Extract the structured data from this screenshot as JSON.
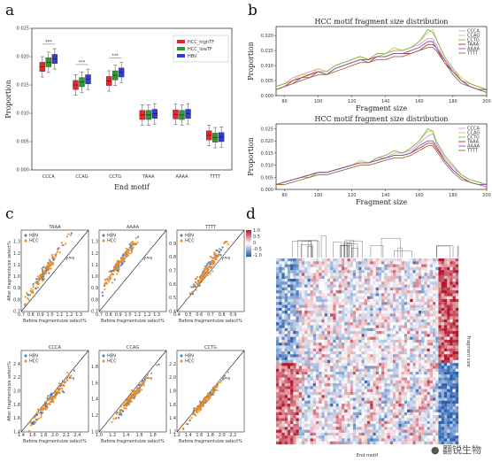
{
  "panels": [
    "a",
    "b",
    "c",
    "d"
  ],
  "watermark": "翻锐生物",
  "chart_data": [
    {
      "id": "a",
      "type": "box",
      "xlabel": "End motif",
      "ylabel": "Proportion",
      "ylim": [
        0,
        0.025
      ],
      "yticks": [
        "0.000",
        "0.005",
        "0.010",
        "0.015",
        "0.020",
        "0.025"
      ],
      "categories": [
        "CCCA",
        "CCAG",
        "CCTG",
        "TAAA",
        "AAAA",
        "TTTT"
      ],
      "series": [
        {
          "name": "HCC_highTF",
          "color": "#e8262b",
          "medians": [
            0.0182,
            0.015,
            0.0157,
            0.0097,
            0.0098,
            0.0061
          ]
        },
        {
          "name": "HCC_lowTF",
          "color": "#2e9a2f",
          "medians": [
            0.019,
            0.0155,
            0.0167,
            0.0097,
            0.0097,
            0.0057
          ]
        },
        {
          "name": "HBV",
          "color": "#2b3fd8",
          "medians": [
            0.0196,
            0.016,
            0.0172,
            0.0099,
            0.0099,
            0.0058
          ]
        }
      ],
      "annotations": [
        "***",
        "***",
        "***"
      ]
    },
    {
      "id": "b1",
      "type": "line",
      "title": "HCC motif fragment size distribution",
      "xlabel": "Fragment size",
      "ylabel": "Proportion",
      "xlim": [
        75,
        200
      ],
      "ylim": [
        0,
        0.023
      ],
      "xticks": [
        "80",
        "100",
        "120",
        "140",
        "160",
        "180",
        "200"
      ],
      "yticks": [
        "0.000",
        "0.005",
        "0.010",
        "0.015",
        "0.020"
      ],
      "legend": [
        "CCCA",
        "CCAG",
        "CCTG",
        "TAAA",
        "AAAA",
        "TTTT"
      ],
      "x": [
        75,
        80,
        85,
        90,
        95,
        100,
        105,
        110,
        115,
        120,
        125,
        130,
        135,
        140,
        145,
        150,
        155,
        160,
        165,
        168,
        170,
        175,
        180,
        185,
        190,
        195,
        200
      ],
      "series": [
        {
          "name": "CCCA",
          "color": "#d89ad8",
          "values": [
            0.003,
            0.004,
            0.006,
            0.007,
            0.008,
            0.009,
            0.008,
            0.01,
            0.011,
            0.012,
            0.013,
            0.012,
            0.013,
            0.014,
            0.016,
            0.015,
            0.016,
            0.017,
            0.019,
            0.019,
            0.017,
            0.012,
            0.008,
            0.005,
            0.004,
            0.003,
            0.002
          ]
        },
        {
          "name": "CCAG",
          "color": "#e0c060",
          "values": [
            0.003,
            0.004,
            0.005,
            0.007,
            0.007,
            0.009,
            0.008,
            0.01,
            0.011,
            0.012,
            0.013,
            0.012,
            0.014,
            0.014,
            0.016,
            0.015,
            0.016,
            0.018,
            0.021,
            0.022,
            0.019,
            0.013,
            0.009,
            0.006,
            0.004,
            0.003,
            0.002
          ]
        },
        {
          "name": "CCTG",
          "color": "#7bbf3f",
          "values": [
            0.003,
            0.004,
            0.005,
            0.006,
            0.007,
            0.008,
            0.008,
            0.01,
            0.011,
            0.012,
            0.013,
            0.012,
            0.014,
            0.014,
            0.015,
            0.015,
            0.016,
            0.018,
            0.022,
            0.021,
            0.019,
            0.013,
            0.009,
            0.005,
            0.004,
            0.003,
            0.002
          ]
        },
        {
          "name": "TAAA",
          "color": "#c03030",
          "values": [
            0.002,
            0.003,
            0.005,
            0.006,
            0.007,
            0.008,
            0.007,
            0.009,
            0.01,
            0.011,
            0.012,
            0.012,
            0.013,
            0.013,
            0.014,
            0.014,
            0.014,
            0.015,
            0.017,
            0.017,
            0.016,
            0.011,
            0.008,
            0.005,
            0.003,
            0.002,
            0.002
          ]
        },
        {
          "name": "AAAA",
          "color": "#8a52b8",
          "values": [
            0.002,
            0.003,
            0.004,
            0.006,
            0.006,
            0.008,
            0.007,
            0.009,
            0.01,
            0.011,
            0.012,
            0.011,
            0.013,
            0.013,
            0.014,
            0.014,
            0.015,
            0.016,
            0.018,
            0.018,
            0.016,
            0.012,
            0.008,
            0.005,
            0.003,
            0.002,
            0.002
          ]
        },
        {
          "name": "TTTT",
          "color": "#9a6a3a",
          "values": [
            0.002,
            0.003,
            0.004,
            0.005,
            0.006,
            0.007,
            0.007,
            0.008,
            0.009,
            0.01,
            0.011,
            0.011,
            0.012,
            0.012,
            0.013,
            0.013,
            0.014,
            0.015,
            0.016,
            0.016,
            0.015,
            0.011,
            0.007,
            0.004,
            0.003,
            0.002,
            0.001
          ]
        }
      ]
    },
    {
      "id": "b2",
      "type": "line",
      "title": "HCC motif fragment size distribution",
      "xlabel": "Fragment size",
      "ylabel": "Proportion",
      "xlim": [
        75,
        200
      ],
      "ylim": [
        0,
        0.027
      ],
      "xticks": [
        "80",
        "100",
        "120",
        "140",
        "160",
        "180",
        "200"
      ],
      "yticks": [
        "0.000",
        "0.005",
        "0.010",
        "0.015",
        "0.020",
        "0.025"
      ],
      "legend": [
        "CCCA",
        "CCAG",
        "CCTG",
        "TAAA",
        "AAAA",
        "TTTT"
      ],
      "x": [
        75,
        80,
        85,
        90,
        95,
        100,
        105,
        110,
        115,
        120,
        125,
        130,
        135,
        140,
        145,
        150,
        155,
        160,
        165,
        168,
        170,
        175,
        180,
        185,
        190,
        195,
        200
      ],
      "series": [
        {
          "name": "CCCA",
          "color": "#d89ad8",
          "values": [
            0.002,
            0.003,
            0.004,
            0.005,
            0.006,
            0.007,
            0.007,
            0.008,
            0.009,
            0.01,
            0.011,
            0.011,
            0.013,
            0.013,
            0.015,
            0.015,
            0.016,
            0.019,
            0.022,
            0.023,
            0.019,
            0.013,
            0.009,
            0.006,
            0.004,
            0.003,
            0.002
          ]
        },
        {
          "name": "CCAG",
          "color": "#e0c060",
          "values": [
            0.002,
            0.003,
            0.004,
            0.005,
            0.006,
            0.007,
            0.007,
            0.008,
            0.009,
            0.01,
            0.012,
            0.011,
            0.013,
            0.014,
            0.016,
            0.015,
            0.017,
            0.02,
            0.024,
            0.024,
            0.02,
            0.014,
            0.01,
            0.006,
            0.004,
            0.003,
            0.002
          ]
        },
        {
          "name": "CCTG",
          "color": "#7bbf3f",
          "values": [
            0.002,
            0.003,
            0.004,
            0.005,
            0.005,
            0.007,
            0.007,
            0.008,
            0.009,
            0.01,
            0.011,
            0.011,
            0.013,
            0.014,
            0.016,
            0.015,
            0.017,
            0.02,
            0.025,
            0.024,
            0.02,
            0.014,
            0.01,
            0.006,
            0.004,
            0.003,
            0.002
          ]
        },
        {
          "name": "TAAA",
          "color": "#c03030",
          "values": [
            0.002,
            0.003,
            0.004,
            0.005,
            0.006,
            0.007,
            0.007,
            0.008,
            0.009,
            0.01,
            0.011,
            0.011,
            0.012,
            0.013,
            0.014,
            0.014,
            0.015,
            0.017,
            0.019,
            0.019,
            0.017,
            0.012,
            0.008,
            0.005,
            0.003,
            0.002,
            0.002
          ]
        },
        {
          "name": "AAAA",
          "color": "#8a52b8",
          "values": [
            0.002,
            0.003,
            0.004,
            0.005,
            0.006,
            0.007,
            0.007,
            0.008,
            0.009,
            0.01,
            0.011,
            0.011,
            0.012,
            0.013,
            0.014,
            0.014,
            0.015,
            0.018,
            0.02,
            0.02,
            0.018,
            0.012,
            0.008,
            0.005,
            0.003,
            0.002,
            0.002
          ]
        },
        {
          "name": "TTTT",
          "color": "#9a6a3a",
          "values": [
            0.002,
            0.002,
            0.003,
            0.004,
            0.005,
            0.006,
            0.006,
            0.007,
            0.008,
            0.009,
            0.01,
            0.01,
            0.011,
            0.012,
            0.013,
            0.013,
            0.014,
            0.016,
            0.018,
            0.018,
            0.016,
            0.011,
            0.007,
            0.004,
            0.003,
            0.002,
            0.001
          ]
        }
      ]
    },
    {
      "id": "c",
      "type": "scatter",
      "xlabel": "Before fragmentsize select%",
      "ylabel": "After fragmentsize select%",
      "legend": [
        "HBV",
        "HCC"
      ],
      "colors": {
        "HBV": "#3b78c4",
        "HCC": "#f08a1e"
      },
      "line_label": "y=x",
      "subplots": [
        {
          "title": "TAAA",
          "xlim": [
            0.7,
            1.4
          ],
          "ylim": [
            0.7,
            1.4
          ],
          "xticks": [
            "0.7",
            "0.8",
            "0.9",
            "1.0",
            "1.1",
            "1.2",
            "1.3"
          ],
          "yticks": [
            "0.7",
            "0.8",
            "0.9",
            "1.0",
            "1.1",
            "1.2",
            "1.3"
          ],
          "center": [
            0.95,
            1.05
          ],
          "spread": [
            0.12,
            0.15
          ]
        },
        {
          "title": "AAAA",
          "xlim": [
            0.7,
            1.4
          ],
          "ylim": [
            0.7,
            1.4
          ],
          "xticks": [
            "0.7",
            "0.8",
            "0.9",
            "1.0",
            "1.1",
            "1.2",
            "1.3"
          ],
          "yticks": [
            "0.7",
            "0.8",
            "0.9",
            "1.0",
            "1.1",
            "1.2",
            "1.3"
          ],
          "center": [
            0.92,
            1.12
          ],
          "spread": [
            0.12,
            0.14
          ]
        },
        {
          "title": "TTTT",
          "xlim": [
            0.4,
            1.0
          ],
          "ylim": [
            0.4,
            1.0
          ],
          "xticks": [
            "0.4",
            "0.5",
            "0.6",
            "0.7",
            "0.8",
            "0.9"
          ],
          "yticks": [
            "0.4",
            "0.5",
            "0.6",
            "0.7",
            "0.8",
            "0.9"
          ],
          "center": [
            0.66,
            0.7
          ],
          "spread": [
            0.1,
            0.12
          ]
        },
        {
          "title": "CCCA",
          "xlim": [
            1.4,
            2.6
          ],
          "ylim": [
            1.4,
            2.6
          ],
          "xticks": [
            "1.4",
            "1.6",
            "1.8",
            "2.0",
            "2.2",
            "2.4"
          ],
          "yticks": [
            "1.4",
            "1.6",
            "1.8",
            "2.0",
            "2.2",
            "2.4"
          ],
          "center": [
            1.9,
            1.85
          ],
          "spread": [
            0.22,
            0.22
          ]
        },
        {
          "title": "CCAG",
          "xlim": [
            1.0,
            2.0
          ],
          "ylim": [
            1.0,
            2.0
          ],
          "xticks": [
            "1.0",
            "1.2",
            "1.4",
            "1.6",
            "1.8"
          ],
          "yticks": [
            "1.0",
            "1.2",
            "1.4",
            "1.6",
            "1.8"
          ],
          "center": [
            1.48,
            1.42
          ],
          "spread": [
            0.16,
            0.16
          ]
        },
        {
          "title": "CCTG",
          "xlim": [
            1.2,
            2.4
          ],
          "ylim": [
            1.2,
            2.4
          ],
          "xticks": [
            "1.2",
            "1.4",
            "1.6",
            "1.8",
            "2.0",
            "2.2"
          ],
          "yticks": [
            "1.2",
            "1.4",
            "1.6",
            "1.8",
            "2.0",
            "2.2"
          ],
          "center": [
            1.7,
            1.66
          ],
          "spread": [
            0.18,
            0.18
          ]
        }
      ]
    },
    {
      "id": "d",
      "type": "heatmap",
      "xlabel": "End motif",
      "ylabel": "Fragment size",
      "colorbar_ticks": [
        "1.0",
        "0.5",
        "0",
        "-0.5",
        "-1.0"
      ],
      "colorscale": [
        "#2a5fb0",
        "#ffffff",
        "#b2182b"
      ],
      "rows": 64,
      "cols": 64
    }
  ]
}
